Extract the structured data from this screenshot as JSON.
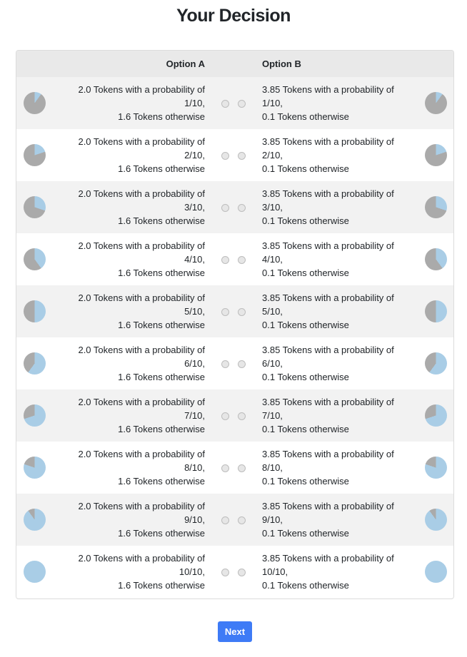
{
  "title": "Your Decision",
  "table": {
    "header_a": "Option A",
    "header_b": "Option B"
  },
  "colors": {
    "win": "#a9cde6",
    "lose": "#aaaaaa",
    "button": "#3e7bf6"
  },
  "rows": [
    {
      "probability": 0.1,
      "a": {
        "l1": "2.0 Tokens with a probability of",
        "l2": "1/10,",
        "l3": "1.6 Tokens otherwise"
      },
      "b": {
        "l1": "3.85 Tokens with a probability of",
        "l2": "1/10,",
        "l3": "0.1 Tokens otherwise"
      }
    },
    {
      "probability": 0.2,
      "a": {
        "l1": "2.0 Tokens with a probability of",
        "l2": "2/10,",
        "l3": "1.6 Tokens otherwise"
      },
      "b": {
        "l1": "3.85 Tokens with a probability of",
        "l2": "2/10,",
        "l3": "0.1 Tokens otherwise"
      }
    },
    {
      "probability": 0.3,
      "a": {
        "l1": "2.0 Tokens with a probability of",
        "l2": "3/10,",
        "l3": "1.6 Tokens otherwise"
      },
      "b": {
        "l1": "3.85 Tokens with a probability of",
        "l2": "3/10,",
        "l3": "0.1 Tokens otherwise"
      }
    },
    {
      "probability": 0.4,
      "a": {
        "l1": "2.0 Tokens with a probability of",
        "l2": "4/10,",
        "l3": "1.6 Tokens otherwise"
      },
      "b": {
        "l1": "3.85 Tokens with a probability of",
        "l2": "4/10,",
        "l3": "0.1 Tokens otherwise"
      }
    },
    {
      "probability": 0.5,
      "a": {
        "l1": "2.0 Tokens with a probability of",
        "l2": "5/10,",
        "l3": "1.6 Tokens otherwise"
      },
      "b": {
        "l1": "3.85 Tokens with a probability of",
        "l2": "5/10,",
        "l3": "0.1 Tokens otherwise"
      }
    },
    {
      "probability": 0.6,
      "a": {
        "l1": "2.0 Tokens with a probability of",
        "l2": "6/10,",
        "l3": "1.6 Tokens otherwise"
      },
      "b": {
        "l1": "3.85 Tokens with a probability of",
        "l2": "6/10,",
        "l3": "0.1 Tokens otherwise"
      }
    },
    {
      "probability": 0.7,
      "a": {
        "l1": "2.0 Tokens with a probability of",
        "l2": "7/10,",
        "l3": "1.6 Tokens otherwise"
      },
      "b": {
        "l1": "3.85 Tokens with a probability of",
        "l2": "7/10,",
        "l3": "0.1 Tokens otherwise"
      }
    },
    {
      "probability": 0.8,
      "a": {
        "l1": "2.0 Tokens with a probability of",
        "l2": "8/10,",
        "l3": "1.6 Tokens otherwise"
      },
      "b": {
        "l1": "3.85 Tokens with a probability of",
        "l2": "8/10,",
        "l3": "0.1 Tokens otherwise"
      }
    },
    {
      "probability": 0.9,
      "a": {
        "l1": "2.0 Tokens with a probability of",
        "l2": "9/10,",
        "l3": "1.6 Tokens otherwise"
      },
      "b": {
        "l1": "3.85 Tokens with a probability of",
        "l2": "9/10,",
        "l3": "0.1 Tokens otherwise"
      }
    },
    {
      "probability": 1.0,
      "a": {
        "l1": "2.0 Tokens with a probability of",
        "l2": "10/10,",
        "l3": "1.6 Tokens otherwise"
      },
      "b": {
        "l1": "3.85 Tokens with a probability of",
        "l2": "10/10,",
        "l3": "0.1 Tokens otherwise"
      }
    }
  ],
  "next_label": "Next"
}
